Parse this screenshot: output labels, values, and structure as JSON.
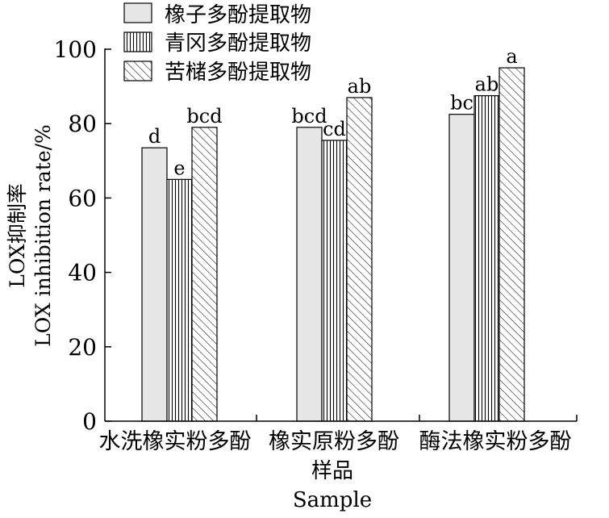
{
  "chart_data": {
    "type": "bar",
    "title": "",
    "xlabel_cn": "样品",
    "xlabel_en": "Sample",
    "ylabel_cn": "LOX抑制率",
    "ylabel_en": "LOX inhibition rate/%",
    "ylim": [
      0,
      100
    ],
    "yticks": [
      0,
      20,
      40,
      60,
      80,
      100
    ],
    "grid": false,
    "legend_position": "top-left",
    "categories": [
      "水洗橡实粉多酚",
      "橡实原粉多酚",
      "酶法橡实粉多酚"
    ],
    "series": [
      {
        "name": "橡子多酚提取物",
        "pattern": "solid-gray",
        "color": "#e6e6e6",
        "values": [
          73.5,
          79.0,
          82.5
        ],
        "labels": [
          "d",
          "bcd",
          "bc"
        ]
      },
      {
        "name": "青冈多酚提取物",
        "pattern": "vertical-lines",
        "color": "#000000",
        "values": [
          65.0,
          75.5,
          87.5
        ],
        "labels": [
          "e",
          "cd",
          "ab"
        ]
      },
      {
        "name": "苦槠多酚提取物",
        "pattern": "diagonal-hatch",
        "color": "#000000",
        "values": [
          79.0,
          87.0,
          95.0
        ],
        "labels": [
          "bcd",
          "ab",
          "a"
        ]
      }
    ]
  }
}
